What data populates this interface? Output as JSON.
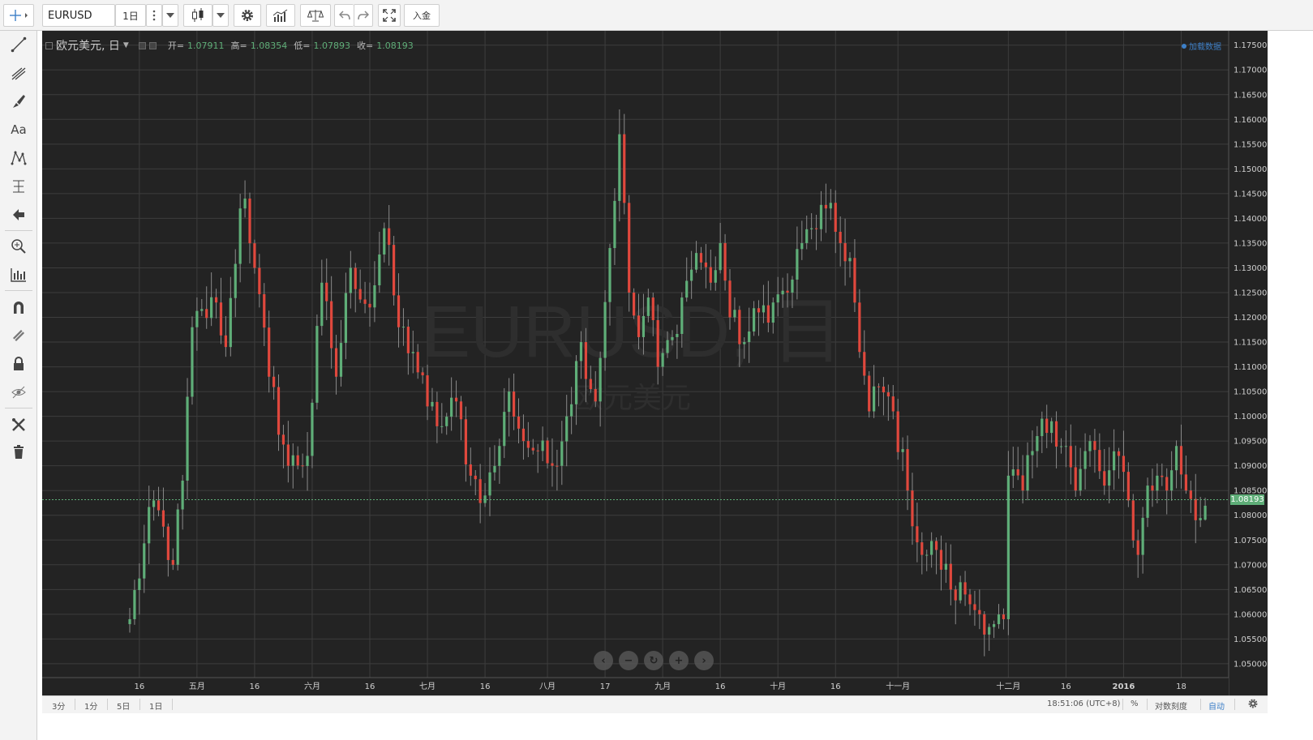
{
  "toolbar": {
    "symbol": "EURUSD",
    "interval": "1日",
    "deposit_label": "入金",
    "icons": [
      "crosshair-icon",
      "more-vertical-icon",
      "candles-icon",
      "chevron-down-icon",
      "gear-icon",
      "indicators-icon",
      "compare-icon",
      "undo-icon",
      "redo-icon",
      "fullscreen-icon"
    ]
  },
  "left_tools": [
    "crosshair-icon",
    "trend-line-icon",
    "fib-icon",
    "brush-icon",
    "text-icon",
    "pattern-icon",
    "measure-icon",
    "arrow-icon",
    "zoom-icon",
    "bars-pattern-icon",
    "magnet-icon",
    "stay-drawing-icon",
    "lock-icon",
    "hide-icon",
    "remove-drawings-icon",
    "trash-icon"
  ],
  "left_text_tool": "Aa",
  "legend": {
    "title": "欧元美元, 日",
    "open_label": "开=",
    "open": "1.07911",
    "high_label": "高=",
    "high": "1.08354",
    "low_label": "低=",
    "low": "1.07893",
    "close_label": "收=",
    "close": "1.08193"
  },
  "add_indicator": "加载数据",
  "watermark": {
    "line1": "EURUSD, 日",
    "line2": "欧元美元"
  },
  "bottom": {
    "ranges": [
      "3分",
      "1分",
      "5日",
      "1日"
    ],
    "time": "18:51:06 (UTC+8)",
    "percent": "%",
    "log": "对数刻度",
    "auto": "自动"
  },
  "colors": {
    "up": "#5fae78",
    "down": "#e0483d",
    "background": "#232323",
    "grid": "#3d3d3d",
    "accent": "#3d7fc7"
  },
  "chart_data": {
    "type": "candlestick",
    "symbol": "EURUSD",
    "interval": "1D",
    "last_price": 1.08193,
    "y_ticks": [
      "1.05000",
      "1.05500",
      "1.06000",
      "1.06500",
      "1.07000",
      "1.07500",
      "1.08000",
      "1.08500",
      "1.09000",
      "1.09500",
      "1.10000",
      "1.10500",
      "1.11000",
      "1.11500",
      "1.12000",
      "1.12500",
      "1.13000",
      "1.13500",
      "1.14000",
      "1.14500",
      "1.15000",
      "1.15500",
      "1.16000",
      "1.16500",
      "1.17000",
      "1.17500"
    ],
    "ylim": [
      1.0472,
      1.1779
    ],
    "x_ticks": [
      {
        "i": 2,
        "label": "16"
      },
      {
        "i": 14,
        "label": "五月"
      },
      {
        "i": 26,
        "label": "16"
      },
      {
        "i": 38,
        "label": "六月"
      },
      {
        "i": 50,
        "label": "16"
      },
      {
        "i": 62,
        "label": "七月"
      },
      {
        "i": 74,
        "label": "16"
      },
      {
        "i": 87,
        "label": "八月"
      },
      {
        "i": 99,
        "label": "17"
      },
      {
        "i": 111,
        "label": "九月"
      },
      {
        "i": 123,
        "label": "16"
      },
      {
        "i": 135,
        "label": "十月"
      },
      {
        "i": 147,
        "label": "16"
      },
      {
        "i": 160,
        "label": "十一月"
      },
      {
        "i": 183,
        "label": "十二月"
      },
      {
        "i": 195,
        "label": "16"
      },
      {
        "i": 207,
        "label": "2016"
      },
      {
        "i": 219,
        "label": "18"
      }
    ],
    "close_anchors": [
      [
        0,
        1.059
      ],
      [
        5,
        1.083
      ],
      [
        9,
        1.07
      ],
      [
        11,
        1.087
      ],
      [
        13,
        1.118
      ],
      [
        18,
        1.123
      ],
      [
        20,
        1.114
      ],
      [
        23,
        1.142
      ],
      [
        24,
        1.144
      ],
      [
        26,
        1.13
      ],
      [
        29,
        1.108
      ],
      [
        33,
        1.09
      ],
      [
        37,
        1.092
      ],
      [
        40,
        1.127
      ],
      [
        43,
        1.108
      ],
      [
        46,
        1.13
      ],
      [
        50,
        1.122
      ],
      [
        53,
        1.138
      ],
      [
        56,
        1.118
      ],
      [
        59,
        1.113
      ],
      [
        62,
        1.102
      ],
      [
        65,
        1.098
      ],
      [
        68,
        1.103
      ],
      [
        71,
        1.088
      ],
      [
        74,
        1.084
      ],
      [
        77,
        1.094
      ],
      [
        79,
        1.105
      ],
      [
        82,
        1.095
      ],
      [
        85,
        1.093
      ],
      [
        88,
        1.09
      ],
      [
        91,
        1.1
      ],
      [
        94,
        1.115
      ],
      [
        97,
        1.103
      ],
      [
        100,
        1.134
      ],
      [
        102,
        1.157
      ],
      [
        104,
        1.125
      ],
      [
        106,
        1.116
      ],
      [
        108,
        1.124
      ],
      [
        110,
        1.11
      ],
      [
        113,
        1.116
      ],
      [
        115,
        1.124
      ],
      [
        118,
        1.133
      ],
      [
        121,
        1.127
      ],
      [
        123,
        1.135
      ],
      [
        125,
        1.12
      ],
      [
        128,
        1.115
      ],
      [
        131,
        1.121
      ],
      [
        134,
        1.123
      ],
      [
        137,
        1.125
      ],
      [
        140,
        1.135
      ],
      [
        142,
        1.138
      ],
      [
        145,
        1.142
      ],
      [
        148,
        1.135
      ],
      [
        150,
        1.132
      ],
      [
        152,
        1.113
      ],
      [
        154,
        1.101
      ],
      [
        156,
        1.106
      ],
      [
        159,
        1.101
      ],
      [
        162,
        1.085
      ],
      [
        165,
        1.072
      ],
      [
        168,
        1.073
      ],
      [
        171,
        1.065
      ],
      [
        174,
        1.064
      ],
      [
        177,
        1.06
      ],
      [
        180,
        1.058
      ],
      [
        182,
        1.059
      ],
      [
        183,
        1.088
      ],
      [
        186,
        1.085
      ],
      [
        189,
        1.096
      ],
      [
        192,
        1.099
      ],
      [
        195,
        1.094
      ],
      [
        197,
        1.085
      ],
      [
        200,
        1.095
      ],
      [
        203,
        1.086
      ],
      [
        206,
        1.092
      ],
      [
        208,
        1.083
      ],
      [
        210,
        1.072
      ],
      [
        212,
        1.086
      ],
      [
        214,
        1.088
      ],
      [
        216,
        1.085
      ],
      [
        218,
        1.094
      ],
      [
        220,
        1.085
      ],
      [
        222,
        1.079
      ],
      [
        224,
        1.0819
      ]
    ],
    "last_candle": {
      "open": 1.07911,
      "high": 1.08354,
      "low": 1.07893,
      "close": 1.08193
    }
  }
}
